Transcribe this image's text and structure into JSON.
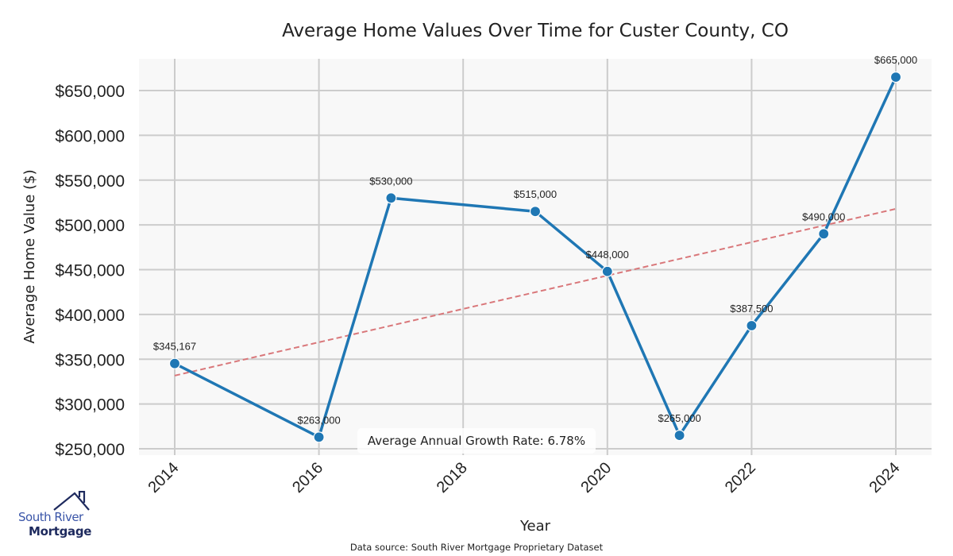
{
  "chart_data": {
    "type": "line",
    "title": "Average Home Values Over Time for Custer County, CO",
    "xlabel": "Year",
    "ylabel": "Average Home Value ($)",
    "x": [
      2014,
      2016,
      2017,
      2019,
      2020,
      2021,
      2022,
      2023,
      2024
    ],
    "series": [
      {
        "name": "Average Home Value",
        "values": [
          345167,
          263000,
          530000,
          515000,
          448000,
          265000,
          387500,
          490000,
          665000
        ],
        "labels": [
          "$345,167",
          "$263,000",
          "$530,000",
          "$515,000",
          "$448,000",
          "$265,000",
          "$387,500",
          "$490,000",
          "$665,000"
        ],
        "color": "#1f77b4"
      }
    ],
    "trendline": {
      "name": "Trend",
      "x": [
        2014,
        2024
      ],
      "values": [
        331700,
        517900
      ],
      "color": "#d9777a",
      "style": "dashed"
    },
    "xticks": [
      2014,
      2016,
      2018,
      2020,
      2022,
      2024
    ],
    "xtick_labels": [
      "2014",
      "2016",
      "2018",
      "2020",
      "2022",
      "2024"
    ],
    "yticks": [
      250000,
      300000,
      350000,
      400000,
      450000,
      500000,
      550000,
      600000,
      650000
    ],
    "ytick_labels": [
      "$250,000",
      "$300,000",
      "$350,000",
      "$400,000",
      "$450,000",
      "$500,000",
      "$550,000",
      "$600,000",
      "$650,000"
    ],
    "xlim": [
      2013.5,
      2024.5
    ],
    "ylim": [
      242000,
      685000
    ],
    "grid": true,
    "annotation": "Average Annual Growth Rate: 6.78%",
    "footnote": "Data source: South River Mortgage Proprietary Dataset",
    "background": "#f8f8f8",
    "grid_color": "#cccccc"
  },
  "logo": {
    "line1": "South River",
    "line2": "Mortgage"
  }
}
